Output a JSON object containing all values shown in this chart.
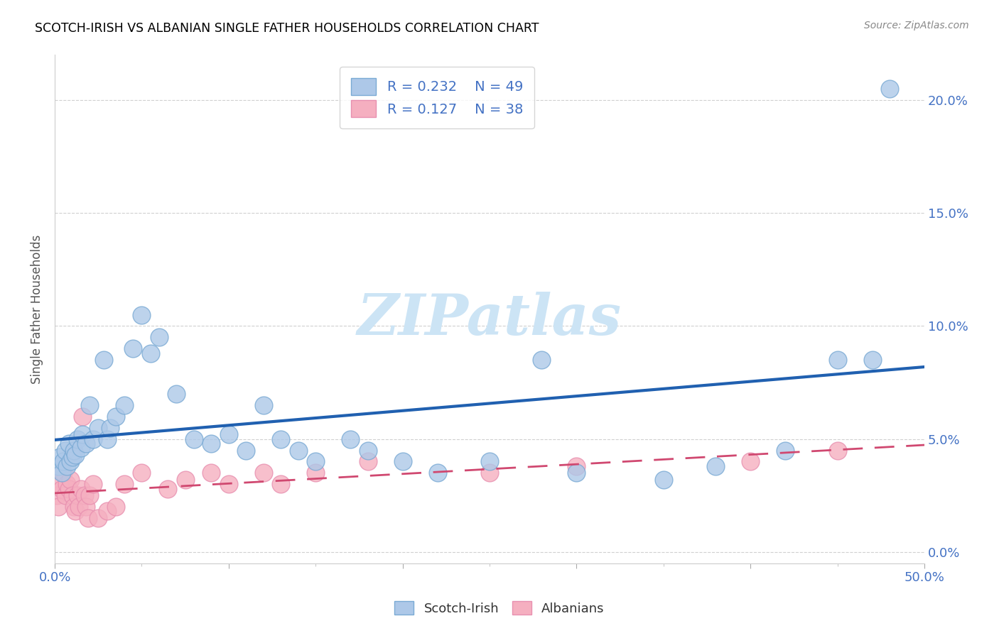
{
  "title": "SCOTCH-IRISH VS ALBANIAN SINGLE FATHER HOUSEHOLDS CORRELATION CHART",
  "source": "Source: ZipAtlas.com",
  "ylabel": "Single Father Households",
  "yticks": [
    "0.0%",
    "5.0%",
    "10.0%",
    "15.0%",
    "20.0%"
  ],
  "ytick_vals": [
    0,
    5,
    10,
    15,
    20
  ],
  "xlim": [
    0,
    50
  ],
  "ylim": [
    -0.5,
    22
  ],
  "legend_r1": "0.232",
  "legend_n1": "49",
  "legend_r2": "0.127",
  "legend_n2": "38",
  "scotch_irish_color": "#adc8e8",
  "albanian_color": "#f5afc0",
  "trend_scotch_color": "#2060b0",
  "trend_albanian_color": "#d04870",
  "scotch_irish_x": [
    0.2,
    0.3,
    0.4,
    0.5,
    0.6,
    0.7,
    0.8,
    0.9,
    1.0,
    1.1,
    1.2,
    1.3,
    1.5,
    1.6,
    1.8,
    2.0,
    2.2,
    2.5,
    2.8,
    3.0,
    3.2,
    3.5,
    4.0,
    4.5,
    5.0,
    5.5,
    6.0,
    7.0,
    8.0,
    9.0,
    10.0,
    11.0,
    12.0,
    13.0,
    14.0,
    15.0,
    17.0,
    18.0,
    20.0,
    22.0,
    25.0,
    28.0,
    30.0,
    35.0,
    38.0,
    42.0,
    45.0,
    47.0,
    48.0
  ],
  "scotch_irish_y": [
    3.8,
    4.2,
    3.5,
    4.0,
    4.5,
    3.8,
    4.8,
    4.0,
    4.2,
    4.5,
    4.3,
    5.0,
    4.6,
    5.2,
    4.8,
    6.5,
    5.0,
    5.5,
    8.5,
    5.0,
    5.5,
    6.0,
    6.5,
    9.0,
    10.5,
    8.8,
    9.5,
    7.0,
    5.0,
    4.8,
    5.2,
    4.5,
    6.5,
    5.0,
    4.5,
    4.0,
    5.0,
    4.5,
    4.0,
    3.5,
    4.0,
    8.5,
    3.5,
    3.2,
    3.8,
    4.5,
    8.5,
    8.5,
    20.5
  ],
  "albanian_x": [
    0.1,
    0.2,
    0.3,
    0.4,
    0.5,
    0.6,
    0.7,
    0.8,
    0.9,
    1.0,
    1.1,
    1.2,
    1.3,
    1.4,
    1.5,
    1.6,
    1.7,
    1.8,
    1.9,
    2.0,
    2.2,
    2.5,
    3.0,
    3.5,
    4.0,
    5.0,
    6.5,
    7.5,
    9.0,
    10.0,
    12.0,
    13.0,
    15.0,
    18.0,
    25.0,
    30.0,
    40.0,
    45.0
  ],
  "albanian_y": [
    2.5,
    2.0,
    3.0,
    2.8,
    3.5,
    2.5,
    3.0,
    2.8,
    3.2,
    2.5,
    2.0,
    1.8,
    2.5,
    2.0,
    2.8,
    6.0,
    2.5,
    2.0,
    1.5,
    2.5,
    3.0,
    1.5,
    1.8,
    2.0,
    3.0,
    3.5,
    2.8,
    3.2,
    3.5,
    3.0,
    3.5,
    3.0,
    3.5,
    4.0,
    3.5,
    3.8,
    4.0,
    4.5
  ],
  "xtick_positions": [
    0,
    10,
    20,
    30,
    40,
    50
  ],
  "xtick_minor": [
    5,
    15,
    25,
    35,
    45
  ]
}
